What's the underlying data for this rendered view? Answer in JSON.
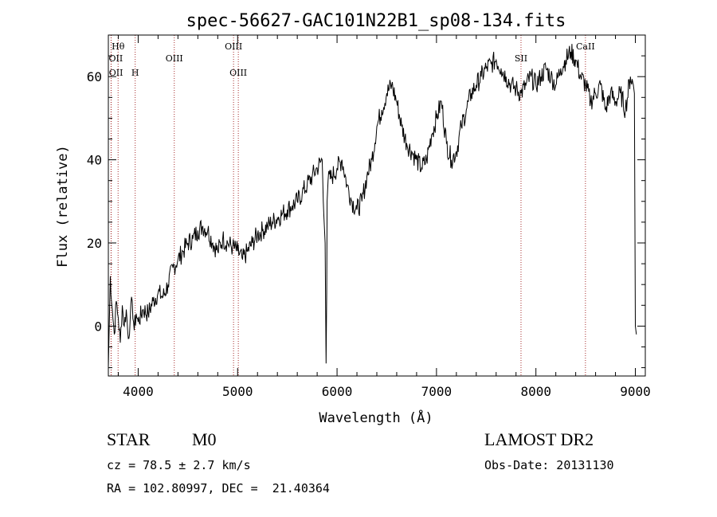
{
  "chart_data": {
    "type": "line",
    "title": "spec-56627-GAC101N22B1_sp08-134.fits",
    "xlabel": "Wavelength (Å)",
    "ylabel": "Flux (relative)",
    "xlim": [
      3700,
      9100
    ],
    "ylim": [
      -12,
      70
    ],
    "xticks": [
      4000,
      5000,
      6000,
      7000,
      8000,
      9000
    ],
    "yticks": [
      0,
      20,
      40,
      60
    ],
    "spectrum": {
      "x": [
        3700,
        3720,
        3740,
        3760,
        3780,
        3800,
        3820,
        3840,
        3860,
        3880,
        3900,
        3920,
        3940,
        3960,
        3980,
        4000,
        4050,
        4100,
        4150,
        4200,
        4250,
        4300,
        4350,
        4400,
        4450,
        4500,
        4550,
        4600,
        4650,
        4700,
        4750,
        4800,
        4850,
        4900,
        4950,
        5000,
        5050,
        5100,
        5150,
        5200,
        5250,
        5300,
        5350,
        5400,
        5450,
        5500,
        5550,
        5600,
        5650,
        5700,
        5750,
        5800,
        5850,
        5880,
        5890,
        5896,
        5900,
        5910,
        5950,
        6000,
        6050,
        6100,
        6150,
        6200,
        6250,
        6300,
        6350,
        6400,
        6450,
        6500,
        6550,
        6600,
        6650,
        6700,
        6750,
        6800,
        6850,
        6900,
        6950,
        7000,
        7050,
        7100,
        7150,
        7200,
        7250,
        7300,
        7350,
        7400,
        7450,
        7500,
        7550,
        7600,
        7650,
        7700,
        7750,
        7800,
        7850,
        7900,
        7950,
        8000,
        8050,
        8100,
        8150,
        8200,
        8250,
        8300,
        8350,
        8400,
        8450,
        8500,
        8550,
        8600,
        8650,
        8700,
        8750,
        8800,
        8850,
        8900,
        8950,
        8980,
        8990,
        9000,
        9010
      ],
      "y": [
        -10,
        12,
        4,
        -2,
        6,
        2,
        -4,
        5,
        0,
        4,
        -3,
        2,
        6,
        -1,
        3,
        1,
        4,
        3,
        6,
        8,
        7,
        10,
        14,
        16,
        18,
        20,
        21,
        23,
        24,
        23,
        20,
        18,
        21,
        20,
        19,
        18,
        16,
        18,
        20,
        22,
        23,
        24,
        25,
        26,
        27,
        28,
        29,
        30,
        32,
        34,
        36,
        38,
        40,
        20,
        -9,
        8,
        30,
        35,
        36,
        38,
        40,
        34,
        30,
        28,
        30,
        36,
        40,
        48,
        52,
        56,
        58,
        54,
        48,
        44,
        42,
        40,
        38,
        40,
        46,
        50,
        54,
        44,
        40,
        42,
        48,
        52,
        56,
        58,
        60,
        62,
        63,
        64,
        62,
        60,
        58,
        57,
        56,
        58,
        60,
        58,
        60,
        62,
        60,
        58,
        62,
        64,
        66,
        64,
        60,
        58,
        54,
        56,
        58,
        52,
        56,
        54,
        56,
        52,
        60,
        58,
        56,
        0,
        -2
      ]
    },
    "lines": [
      {
        "name": "Hθ",
        "x": 3798,
        "row": 1
      },
      {
        "name": "OII",
        "x": 3727,
        "row": 2
      },
      {
        "name": "OII",
        "x": 3729,
        "row": 3
      },
      {
        "name": "H",
        "x": 3970,
        "row": 3
      },
      {
        "name": "OIII",
        "x": 4363,
        "row": 2
      },
      {
        "name": "OIII",
        "x": 4959,
        "row": 1
      },
      {
        "name": "OIII",
        "x": 5007,
        "row": 3
      },
      {
        "name": "SII",
        "x": 7850,
        "row": 2
      },
      {
        "name": "CaII",
        "x": 8498,
        "row": 1
      }
    ]
  },
  "info": {
    "class_label": "STAR",
    "subclass": "M0",
    "survey": "LAMOST DR2",
    "cz": "cz = 78.5 ± 2.7 km/s",
    "obs_date": "Obs-Date: 20131130",
    "radec": "RA = 102.80997, DEC =  21.40364"
  }
}
